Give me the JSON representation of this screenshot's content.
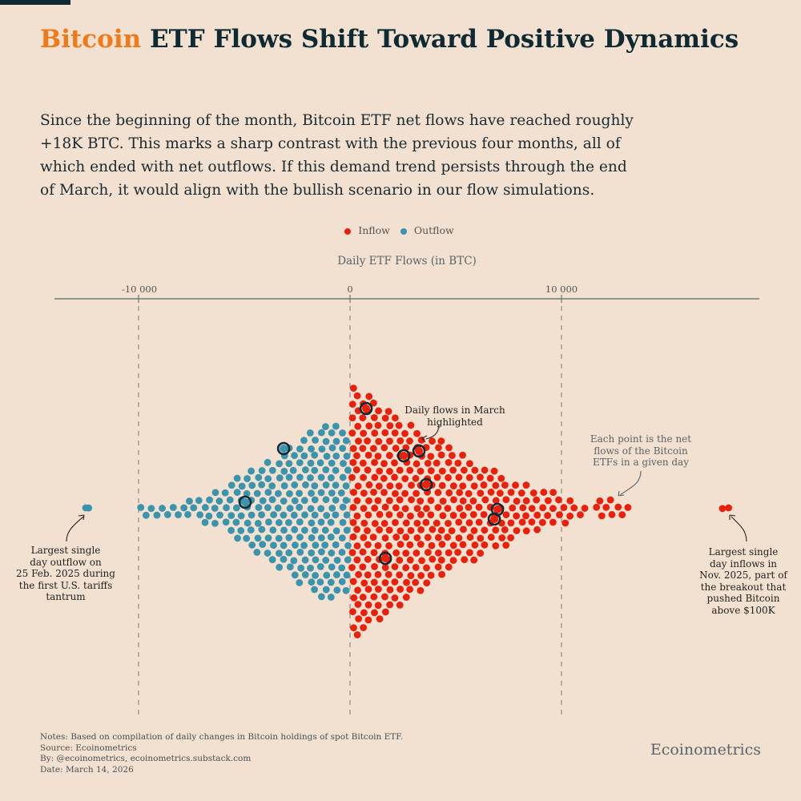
{
  "header": {
    "title_highlight": "Bitcoin",
    "title_rest": " ETF Flows Shift Toward Positive Dynamics",
    "subtitle_lines": [
      "Since the beginning of the month, Bitcoin ETF net flows have reached roughly",
      "+18K BTC. This marks a sharp contrast with the previous four months, all of",
      "which ended with net outflows. If this demand trend persists through the end",
      "of March, it would align with the bullish scenario in our flow simulations."
    ]
  },
  "colors": {
    "inflow": "#e8200c",
    "outflow": "#3a94ad",
    "highlight": "#0f2a33",
    "accent": "#f07a1a",
    "background": "#f2e0d0"
  },
  "chart_data": {
    "type": "scatter",
    "subtype": "beeswarm",
    "xlabel": "Daily ETF Flows (in BTC)",
    "xlim": [
      -14000,
      19500
    ],
    "xticks": [
      {
        "value": -10000,
        "label": "-10 000"
      },
      {
        "value": 0,
        "label": "0"
      },
      {
        "value": 10000,
        "label": "10 000"
      }
    ],
    "grid": "vertical dashed at ticks",
    "legend": {
      "placement": "top-center",
      "entries": [
        "Inflow",
        "Outflow"
      ]
    },
    "bin_width": 500,
    "series": [
      {
        "name": "Outflow",
        "bins": [
          [
            -12500,
            1
          ],
          [
            -10000,
            2
          ],
          [
            -9500,
            2
          ],
          [
            -9000,
            2
          ],
          [
            -8500,
            2
          ],
          [
            -8000,
            3
          ],
          [
            -7500,
            3
          ],
          [
            -7000,
            4
          ],
          [
            -6500,
            5
          ],
          [
            -6000,
            7
          ],
          [
            -5500,
            9
          ],
          [
            -5000,
            11
          ],
          [
            -4500,
            12
          ],
          [
            -4000,
            14
          ],
          [
            -3500,
            16
          ],
          [
            -3000,
            18
          ],
          [
            -2500,
            20
          ],
          [
            -2000,
            22
          ],
          [
            -1500,
            24
          ],
          [
            -1000,
            24
          ],
          [
            -500,
            22
          ]
        ]
      },
      {
        "name": "Inflow",
        "bins": [
          [
            0,
            34
          ],
          [
            500,
            32
          ],
          [
            1000,
            30
          ],
          [
            1500,
            28
          ],
          [
            2000,
            26
          ],
          [
            2500,
            24
          ],
          [
            3000,
            22
          ],
          [
            3500,
            20
          ],
          [
            4000,
            19
          ],
          [
            4500,
            17
          ],
          [
            5000,
            15
          ],
          [
            5500,
            14
          ],
          [
            6000,
            12
          ],
          [
            6500,
            11
          ],
          [
            7000,
            10
          ],
          [
            7500,
            8
          ],
          [
            8000,
            7
          ],
          [
            8500,
            6
          ],
          [
            9000,
            5
          ],
          [
            9500,
            5
          ],
          [
            10000,
            4
          ],
          [
            10500,
            2
          ],
          [
            11000,
            1
          ],
          [
            11500,
            3
          ],
          [
            12000,
            3
          ],
          [
            12500,
            2
          ],
          [
            13000,
            1
          ],
          [
            17500,
            1
          ]
        ]
      }
    ],
    "march_highlighted": [
      760,
      -3140,
      -4960,
      2540,
      3260,
      3600,
      6970,
      6820,
      1670
    ],
    "extremes": {
      "largest_outflow": -12500,
      "largest_inflow": 17900
    },
    "annotations": {
      "march": "Daily flows in March highlighted",
      "each_point": "Each point is the net flows of the Bitcoin ETFs in a given day",
      "largest_outflow": "Largest single day outflow on 25 Feb. 2025 during the first U.S. tariffs tantrum",
      "largest_inflow": "Largest single day inflows in Nov. 2025, part of the breakout that pushed Bitcoin above $100K"
    }
  },
  "annotation_lines": {
    "march": [
      "Daily flows in March",
      "highlighted"
    ],
    "each_point": [
      "Each point is the net",
      "flows of the Bitcoin",
      "ETFs in a given day"
    ],
    "largest_outflow": [
      "Largest single",
      "day outflow on",
      "25 Feb. 2025 during",
      "the first U.S. tariffs",
      "tantrum"
    ],
    "largest_inflow": [
      "Largest single",
      "day inflows in",
      "Nov. 2025, part of",
      "the breakout that",
      "pushed Bitcoin",
      "above $100K"
    ]
  },
  "footer": {
    "notes": [
      "Notes: Based on compilation of daily changes in Bitcoin holdings of spot Bitcoin ETF.",
      "Source: Ecoinometrics",
      "By: @ecoinometrics, ecoinometrics.substack.com",
      "Date: March 14, 2026"
    ],
    "brand": "Ecoinometrics"
  }
}
